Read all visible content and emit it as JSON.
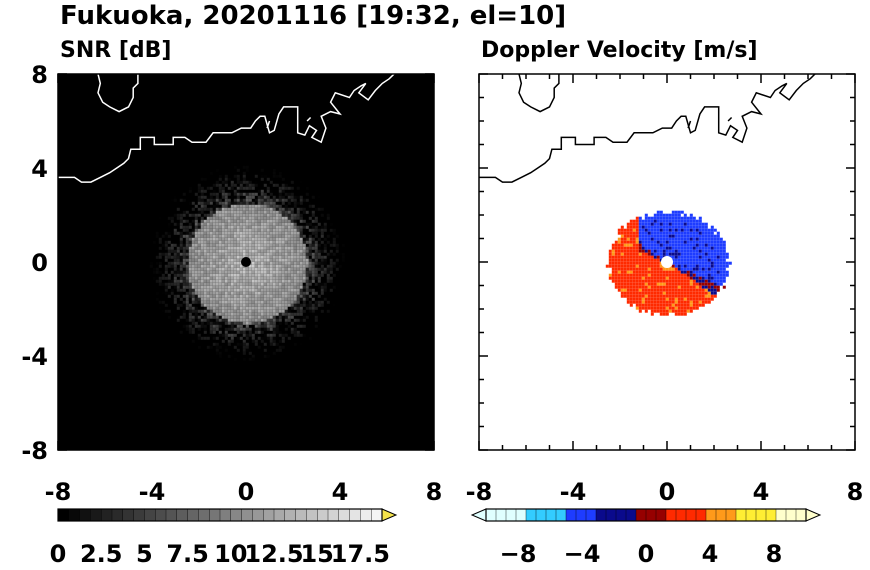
{
  "figure": {
    "title": "Fukuoka, 20201116 [19:32, el=10]"
  },
  "chart_data": [
    {
      "type": "heatmap",
      "title": "SNR [dB]",
      "xlim": [
        -8,
        8
      ],
      "ylim": [
        -8,
        8
      ],
      "x_ticks": [
        "-8",
        "-4",
        "0",
        "4",
        "8"
      ],
      "y_ticks": [
        "8",
        "4",
        "0",
        "-4",
        "-8"
      ],
      "background_value": 0,
      "echo_center": [
        0,
        0
      ],
      "echo_radius": 3.0,
      "echo_peak_value": 12,
      "radar_marker": [
        0,
        0
      ],
      "colorbar": {
        "range": [
          0,
          18.75
        ],
        "step": 0.625,
        "extend": "max",
        "tick_values": [
          0,
          2.5,
          5,
          7.5,
          10,
          12.5,
          15,
          17.5
        ],
        "tick_labels": [
          "0",
          "2.5",
          "5",
          "7.5",
          "10",
          "12.5",
          "15",
          "17.5"
        ],
        "colormap": "gray",
        "over_color": "#f5e34a"
      },
      "grid": false
    },
    {
      "type": "heatmap",
      "title": "Doppler Velocity [m/s]",
      "xlim": [
        -8,
        8
      ],
      "ylim": [
        -8,
        8
      ],
      "x_ticks": [
        "-8",
        "-4",
        "0",
        "4",
        "8"
      ],
      "y_ticks": [
        "8",
        "4",
        "0",
        "-4",
        "-8"
      ],
      "echo_center": [
        0,
        0
      ],
      "echo_radius": 2.2,
      "radar_marker": [
        0,
        0
      ],
      "colorbar": {
        "range": [
          -10,
          10
        ],
        "step": 0.625,
        "extend": "both",
        "tick_values": [
          -8,
          -4,
          0,
          4,
          8
        ],
        "tick_labels": [
          "−8",
          "−4",
          "0",
          "4",
          "8"
        ],
        "colormap": "blue-red diverging",
        "colors": {
          "light_cyan": "#e0ffff",
          "cyan": "#33ccff",
          "blue": "#1e3cff",
          "dark_blue": "#0a0a8c",
          "dark_red": "#960000",
          "red": "#ff2a00",
          "orange": "#ff9a1a",
          "yellow": "#ffee33",
          "light_yellow": "#ffffcc"
        }
      },
      "grid": false
    }
  ],
  "coastline_km": [
    [
      [
        -8,
        3.6
      ],
      [
        -7.6,
        3.6
      ],
      [
        -7.3,
        3.6
      ],
      [
        -7,
        3.4
      ],
      [
        -6.6,
        3.4
      ],
      [
        -6.2,
        3.6
      ],
      [
        -5.8,
        3.8
      ],
      [
        -5.5,
        4
      ],
      [
        -5.2,
        4.2
      ],
      [
        -5,
        4.4
      ],
      [
        -4.9,
        4.8
      ],
      [
        -4.5,
        4.8
      ],
      [
        -4.5,
        5.3
      ],
      [
        -3.9,
        5.3
      ],
      [
        -3.9,
        5
      ],
      [
        -3.1,
        5
      ],
      [
        -3.1,
        5.3
      ],
      [
        -2.6,
        5.3
      ],
      [
        -2.3,
        5.1
      ],
      [
        -1.7,
        5.1
      ],
      [
        -1.4,
        5.5
      ],
      [
        -0.6,
        5.5
      ],
      [
        -0.2,
        5.7
      ],
      [
        0.2,
        5.7
      ],
      [
        0.4,
        6
      ],
      [
        0.6,
        6.2
      ],
      [
        0.8,
        6.2
      ],
      [
        1,
        5.5
      ],
      [
        1.2,
        5.6
      ],
      [
        1.4,
        6.3
      ],
      [
        1.6,
        6.6
      ],
      [
        2.2,
        6.6
      ],
      [
        2.2,
        5.5
      ],
      [
        2.5,
        5.4
      ],
      [
        2.7,
        5.8
      ],
      [
        3,
        5.6
      ],
      [
        2.8,
        5.3
      ],
      [
        3.2,
        5.1
      ],
      [
        3.4,
        5.7
      ],
      [
        3.2,
        6.2
      ],
      [
        3.6,
        6.4
      ],
      [
        4,
        6.3
      ],
      [
        3.6,
        6.8
      ],
      [
        3.8,
        7.2
      ],
      [
        4.4,
        7
      ],
      [
        4.6,
        7.3
      ],
      [
        4.9,
        7.5
      ],
      [
        5.1,
        7.6
      ],
      [
        4.8,
        7.2
      ],
      [
        5.2,
        6.9
      ],
      [
        5.5,
        7.3
      ],
      [
        5.8,
        7.6
      ],
      [
        6.1,
        7.8
      ],
      [
        6.3,
        8
      ]
    ],
    [
      [
        -6.3,
        8
      ],
      [
        -6.2,
        7.6
      ],
      [
        -6.3,
        7.2
      ],
      [
        -6.1,
        6.8
      ],
      [
        -5.8,
        6.6
      ],
      [
        -5.4,
        6.4
      ],
      [
        -5.0,
        6.6
      ],
      [
        -4.8,
        7.0
      ],
      [
        -4.8,
        7.4
      ],
      [
        -4.6,
        7.6
      ],
      [
        -4.6,
        8
      ]
    ],
    [
      [
        0.9,
        5.7
      ],
      [
        1.0,
        6.0
      ]
    ],
    [
      [
        2.6,
        6.0
      ],
      [
        2.75,
        6.15
      ]
    ]
  ]
}
